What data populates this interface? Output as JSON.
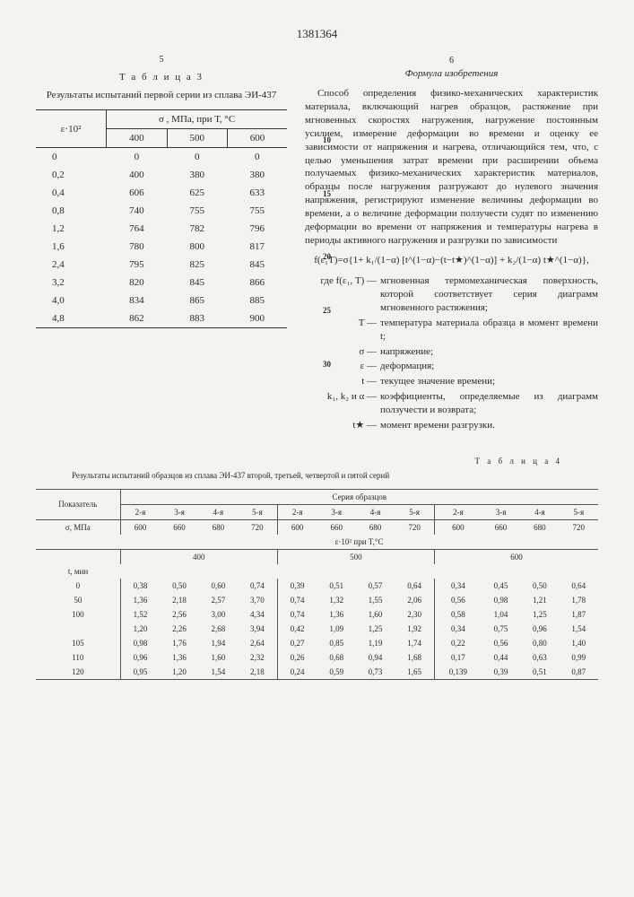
{
  "doc_number": "1381364",
  "col_left_num": "5",
  "col_right_num": "6",
  "table3": {
    "title": "Т а б л и ц а   3",
    "caption": "Результаты испытаний первой серии из сплава ЭИ-437",
    "col1_header": "ε·10²",
    "col_group_header": "σ , МПа, при Т, °С",
    "temps": [
      "400",
      "500",
      "600"
    ],
    "rows": [
      [
        "0",
        "0",
        "0",
        "0"
      ],
      [
        "0,2",
        "400",
        "380",
        "380"
      ],
      [
        "0,4",
        "606",
        "625",
        "633"
      ],
      [
        "0,8",
        "740",
        "755",
        "755"
      ],
      [
        "1,2",
        "764",
        "782",
        "796"
      ],
      [
        "1,6",
        "780",
        "800",
        "817"
      ],
      [
        "2,4",
        "795",
        "825",
        "845"
      ],
      [
        "3,2",
        "820",
        "845",
        "866"
      ],
      [
        "4,0",
        "834",
        "865",
        "885"
      ],
      [
        "4,8",
        "862",
        "883",
        "900"
      ]
    ]
  },
  "formula_title": "Формула изобретения",
  "body_text": "Способ определения физико-механических характеристик материала, включающий нагрев образцов, растяжение при мгновенных скоростях нагружения, нагружение постоянным усилием, измерение деформации во времени и оценку ее зависимости от напряжения и нагрева, отличающийся тем, что, с целью уменьшения затрат времени при расширении объема получаемых физико-механических характеристик материалов, образцы после нагружения разгружают до нулевого значения напряжения, регистрируют изменение величины деформации во времени, а о величине деформации ползучести судят по изменению деформации во времени от напряжения и температуры нагрева в периоды активного нагружения и разгрузки по зависимости",
  "formula": "f(ε₁T)=σ{1+ k₁/(1−α) [t^(1−α)−(t−t★)^(1−α)] + k₂/(1−α) t★^(1−α)},",
  "defs": [
    {
      "sym": "где f(ε₁, T) —",
      "desc": "мгновенная термомеханическая поверхность, которой соответствует серия диаграмм мгновенного растяжения;"
    },
    {
      "sym": "T —",
      "desc": "температура материала образца в момент времени t;"
    },
    {
      "sym": "σ —",
      "desc": "напряжение;"
    },
    {
      "sym": "ε —",
      "desc": "деформация;"
    },
    {
      "sym": "t —",
      "desc": "текущее значение времени;"
    },
    {
      "sym": "k₁, k₂ и α —",
      "desc": "коэффициенты, определяемые из диаграмм ползучести и возврата;"
    },
    {
      "sym": "t★ —",
      "desc": "момент времени разгрузки."
    }
  ],
  "markers": [
    "10",
    "15",
    "20",
    "25",
    "30"
  ],
  "table4": {
    "title": "Т а б л и ц а   4",
    "caption": "Результаты испытаний образцов из сплава ЭИ-437 второй, третьей, четвертой и пятой серий",
    "row_label": "Показатель",
    "series_header": "Серия образцов",
    "series": [
      "2-я",
      "3-я",
      "4-я",
      "5-я",
      "2-я",
      "3-я",
      "4-я",
      "5-я",
      "2-я",
      "3-я",
      "4-я",
      "5-я"
    ],
    "sigma_label": "σ, МПа",
    "sigma": [
      "600",
      "660",
      "680",
      "720",
      "600",
      "660",
      "680",
      "720",
      "600",
      "660",
      "680",
      "720"
    ],
    "temp_label": "ε·10² при T,°С",
    "temp_groups": [
      "400",
      "500",
      "600"
    ],
    "t_label": "t, мин",
    "rows": [
      [
        "0",
        "0,38",
        "0,50",
        "0,60",
        "0,74",
        "0,39",
        "0,51",
        "0,57",
        "0,64",
        "0,34",
        "0,45",
        "0,50",
        "0,64"
      ],
      [
        "50",
        "1,36",
        "2,18",
        "2,57",
        "3,70",
        "0,74",
        "1,32",
        "1,55",
        "2,06",
        "0,56",
        "0,98",
        "1,21",
        "1,78"
      ],
      [
        "100",
        "1,52",
        "2,56",
        "3,00",
        "4,34",
        "0,74",
        "1,36",
        "1,60",
        "2,30",
        "0,58",
        "1,04",
        "1,25",
        "1,87"
      ],
      [
        "",
        "1,20",
        "2,26",
        "2,68",
        "3,94",
        "0,42",
        "1,09",
        "1,25",
        "1,92",
        "0,34",
        "0,75",
        "0,96",
        "1,54"
      ],
      [
        "105",
        "0,98",
        "1,76",
        "1,94",
        "2,64",
        "0,27",
        "0,85",
        "1,19",
        "1,74",
        "0,22",
        "0,56",
        "0,80",
        "1,40"
      ],
      [
        "110",
        "0,96",
        "1,36",
        "1,60",
        "2,32",
        "0,26",
        "0,68",
        "0,94",
        "1,68",
        "0,17",
        "0,44",
        "0,63",
        "0,99"
      ],
      [
        "120",
        "0,95",
        "1,20",
        "1,54",
        "2,18",
        "0,24",
        "0,59",
        "0,73",
        "1,65",
        "0,139",
        "0,39",
        "0,51",
        "0,87"
      ]
    ]
  }
}
